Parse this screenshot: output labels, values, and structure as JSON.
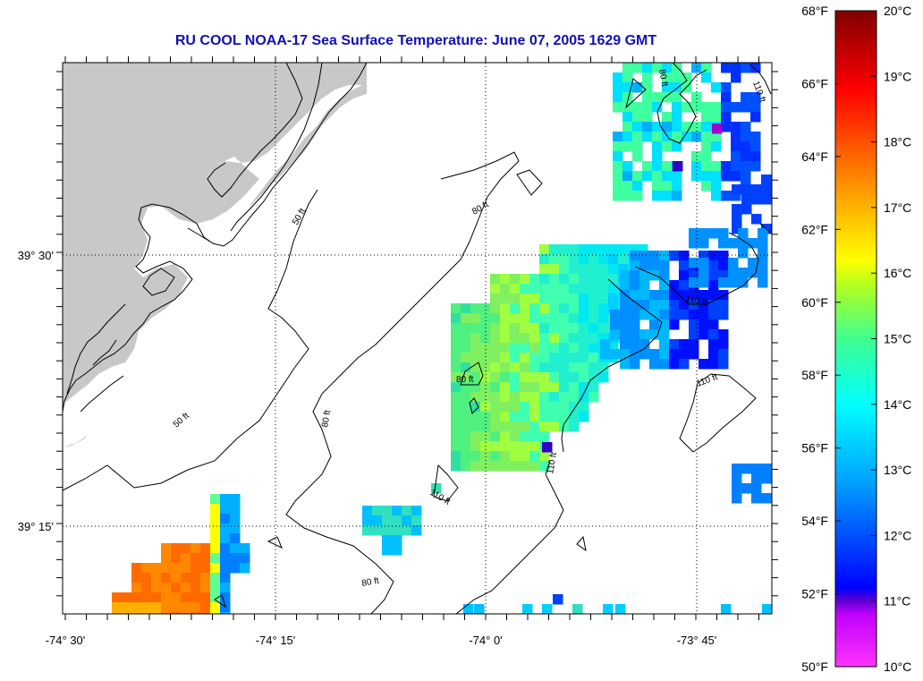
{
  "title": "RU COOL  NOAA-17  Sea Surface Temperature:  June 07, 2005 1629 GMT",
  "axes": {
    "x_labels": [
      "-74° 30'",
      "-74° 15'",
      "-74° 0'",
      "-73° 45'"
    ],
    "y_labels": [
      "39° 30'",
      "39° 15'"
    ]
  },
  "contour_labels": {
    "c50_north": "50 ft",
    "c50_south": "50 ft",
    "c80_north": "80 ft",
    "c80_mid": "80 ft",
    "c80_center": "80 ft",
    "c80_south": "80 ft",
    "c80_ne": "80 ft",
    "c110_ne": "110 ft",
    "c110_east": "110 ft",
    "c110_se": "110 ft",
    "c110_center": "110 ft",
    "c110_small": "110 ft"
  },
  "colorbar": {
    "fahrenheit": [
      "68°F",
      "66°F",
      "64°F",
      "62°F",
      "60°F",
      "58°F",
      "56°F",
      "54°F",
      "52°F",
      "50°F"
    ],
    "celsius": [
      "20°C",
      "19°C",
      "18°C",
      "17°C",
      "16°C",
      "15°C",
      "14°C",
      "13°C",
      "12°C",
      "11°C",
      "10°C"
    ],
    "colors": [
      "#ff00ff",
      "#8000c0",
      "#0000ff",
      "#00a0ff",
      "#00ffff",
      "#40ff80",
      "#c0ff00",
      "#ffff00",
      "#ff8000",
      "#ff0000",
      "#800000"
    ]
  },
  "colors": {
    "land": "#c8c8c8",
    "title": "#1010b8"
  }
}
